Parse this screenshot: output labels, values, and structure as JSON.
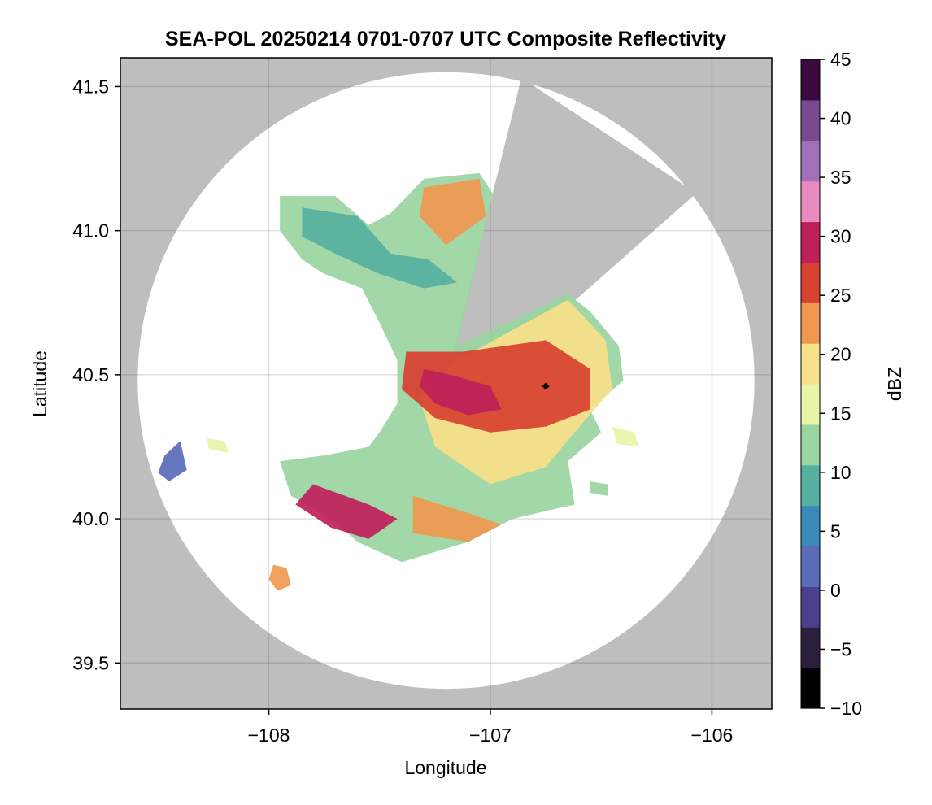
{
  "chart_data": {
    "type": "heatmap",
    "title": "SEA-POL 20250214 0701-0707 UTC Composite Reflectivity",
    "xlabel": "Longitude",
    "ylabel": "Latitude",
    "xlim": [
      -108.67,
      -105.73
    ],
    "ylim": [
      39.34,
      41.6
    ],
    "xticks": [
      -108,
      -107,
      -106
    ],
    "xtick_labels": [
      "−108",
      "−107",
      "−106"
    ],
    "yticks": [
      39.5,
      40.0,
      40.5,
      41.0,
      41.5
    ],
    "ytick_labels": [
      "39.5",
      "40.0",
      "40.5",
      "41.0",
      "41.5"
    ],
    "grid": true,
    "background_color": "#bebebe",
    "radar": {
      "center_lon": -107.2,
      "center_lat": 40.48,
      "range_deg_lat": 1.07,
      "blocked_sector_lonlat": [
        [
          -107.2,
          40.48
        ],
        [
          -106.86,
          41.53
        ],
        [
          -106.07,
          41.13
        ],
        [
          -106.63,
          40.75
        ]
      ]
    },
    "station_marker": {
      "lon": -106.75,
      "lat": 40.46
    },
    "colorbar": {
      "label": "dBZ",
      "min": -10,
      "max": 45,
      "ticks": [
        -10,
        -5,
        0,
        5,
        10,
        15,
        20,
        25,
        30,
        35,
        40,
        45
      ],
      "tick_labels": [
        "−10",
        "−5",
        "0",
        "5",
        "10",
        "15",
        "20",
        "25",
        "30",
        "35",
        "40",
        "45"
      ],
      "colors": [
        "#000000",
        "#2b1f3d",
        "#4a3f8c",
        "#5a6bb8",
        "#3a8ab8",
        "#55b0a0",
        "#9ad4a0",
        "#e8f4a8",
        "#f8e08a",
        "#f09850",
        "#d84030",
        "#c0205a",
        "#e88cc0",
        "#a070b8",
        "#7a4a90",
        "#3a0a40"
      ]
    },
    "echo_regions": [
      {
        "name": "main-echo",
        "dbz": 14,
        "polygon": [
          [
            -107.95,
            41.12
          ],
          [
            -107.7,
            41.12
          ],
          [
            -107.55,
            41.02
          ],
          [
            -107.45,
            41.06
          ],
          [
            -107.3,
            41.18
          ],
          [
            -107.05,
            41.2
          ],
          [
            -106.99,
            41.13
          ],
          [
            -107.15,
            40.6
          ],
          [
            -106.65,
            40.78
          ],
          [
            -106.55,
            40.72
          ],
          [
            -106.42,
            40.6
          ],
          [
            -106.4,
            40.48
          ],
          [
            -106.55,
            40.38
          ],
          [
            -106.5,
            40.3
          ],
          [
            -106.65,
            40.2
          ],
          [
            -106.62,
            40.05
          ],
          [
            -106.9,
            40.0
          ],
          [
            -107.1,
            39.92
          ],
          [
            -107.4,
            39.85
          ],
          [
            -107.6,
            39.92
          ],
          [
            -107.72,
            40.0
          ],
          [
            -107.9,
            40.08
          ],
          [
            -107.95,
            40.2
          ],
          [
            -107.75,
            40.22
          ],
          [
            -107.55,
            40.25
          ],
          [
            -107.5,
            40.3
          ],
          [
            -107.42,
            40.4
          ],
          [
            -107.42,
            40.55
          ],
          [
            -107.5,
            40.68
          ],
          [
            -107.58,
            40.8
          ],
          [
            -107.75,
            40.85
          ],
          [
            -107.85,
            40.9
          ],
          [
            -107.95,
            41.0
          ]
        ]
      },
      {
        "name": "teal-band-north",
        "dbz": 9,
        "polygon": [
          [
            -107.85,
            41.08
          ],
          [
            -107.6,
            41.05
          ],
          [
            -107.45,
            40.92
          ],
          [
            -107.28,
            40.9
          ],
          [
            -107.15,
            40.82
          ],
          [
            -107.3,
            40.8
          ],
          [
            -107.5,
            40.85
          ],
          [
            -107.7,
            40.92
          ],
          [
            -107.85,
            40.98
          ]
        ]
      },
      {
        "name": "yellow-east",
        "dbz": 18,
        "polygon": [
          [
            -107.15,
            40.55
          ],
          [
            -106.65,
            40.76
          ],
          [
            -106.48,
            40.62
          ],
          [
            -106.45,
            40.45
          ],
          [
            -106.62,
            40.3
          ],
          [
            -106.75,
            40.18
          ],
          [
            -107.0,
            40.12
          ],
          [
            -107.25,
            40.25
          ],
          [
            -107.32,
            40.42
          ]
        ]
      },
      {
        "name": "orange-core",
        "dbz": 25,
        "polygon": [
          [
            -107.38,
            40.58
          ],
          [
            -107.12,
            40.58
          ],
          [
            -106.75,
            40.62
          ],
          [
            -106.55,
            40.52
          ],
          [
            -106.55,
            40.38
          ],
          [
            -106.75,
            40.32
          ],
          [
            -107.0,
            40.3
          ],
          [
            -107.25,
            40.35
          ],
          [
            -107.4,
            40.45
          ]
        ]
      },
      {
        "name": "red-core",
        "dbz": 31,
        "polygon": [
          [
            -107.3,
            40.52
          ],
          [
            -107.18,
            40.5
          ],
          [
            -107.0,
            40.46
          ],
          [
            -106.95,
            40.38
          ],
          [
            -107.1,
            40.36
          ],
          [
            -107.25,
            40.4
          ],
          [
            -107.32,
            40.46
          ]
        ]
      },
      {
        "name": "blue-patch",
        "dbz": 2,
        "polygon": [
          [
            -108.47,
            40.22
          ],
          [
            -108.4,
            40.27
          ],
          [
            -108.37,
            40.17
          ],
          [
            -108.45,
            40.13
          ],
          [
            -108.5,
            40.16
          ]
        ]
      },
      {
        "name": "red-southwest",
        "dbz": 29,
        "polygon": [
          [
            -107.8,
            40.12
          ],
          [
            -107.55,
            40.05
          ],
          [
            -107.42,
            40.0
          ],
          [
            -107.55,
            39.93
          ],
          [
            -107.72,
            39.97
          ],
          [
            -107.88,
            40.05
          ]
        ]
      },
      {
        "name": "orange-south",
        "dbz": 24,
        "polygon": [
          [
            -107.35,
            40.08
          ],
          [
            -107.1,
            40.02
          ],
          [
            -106.95,
            39.98
          ],
          [
            -107.1,
            39.92
          ],
          [
            -107.35,
            39.95
          ]
        ]
      },
      {
        "name": "orange-north",
        "dbz": 23,
        "polygon": [
          [
            -107.3,
            41.15
          ],
          [
            -107.05,
            41.18
          ],
          [
            -107.02,
            41.05
          ],
          [
            -107.2,
            40.95
          ],
          [
            -107.32,
            41.05
          ]
        ]
      },
      {
        "name": "cell-southwest",
        "dbz": 22,
        "polygon": [
          [
            -107.98,
            39.84
          ],
          [
            -107.92,
            39.83
          ],
          [
            -107.9,
            39.77
          ],
          [
            -107.96,
            39.75
          ],
          [
            -108.0,
            39.79
          ]
        ]
      },
      {
        "name": "cell-west",
        "dbz": 15,
        "polygon": [
          [
            -108.28,
            40.28
          ],
          [
            -108.2,
            40.27
          ],
          [
            -108.18,
            40.23
          ],
          [
            -108.27,
            40.24
          ]
        ]
      },
      {
        "name": "cell-east",
        "dbz": 15,
        "polygon": [
          [
            -106.45,
            40.32
          ],
          [
            -106.35,
            40.3
          ],
          [
            -106.33,
            40.25
          ],
          [
            -106.43,
            40.26
          ]
        ]
      },
      {
        "name": "cell-southeast",
        "dbz": 12,
        "polygon": [
          [
            -106.55,
            40.13
          ],
          [
            -106.47,
            40.12
          ],
          [
            -106.47,
            40.08
          ],
          [
            -106.55,
            40.09
          ]
        ]
      }
    ]
  }
}
